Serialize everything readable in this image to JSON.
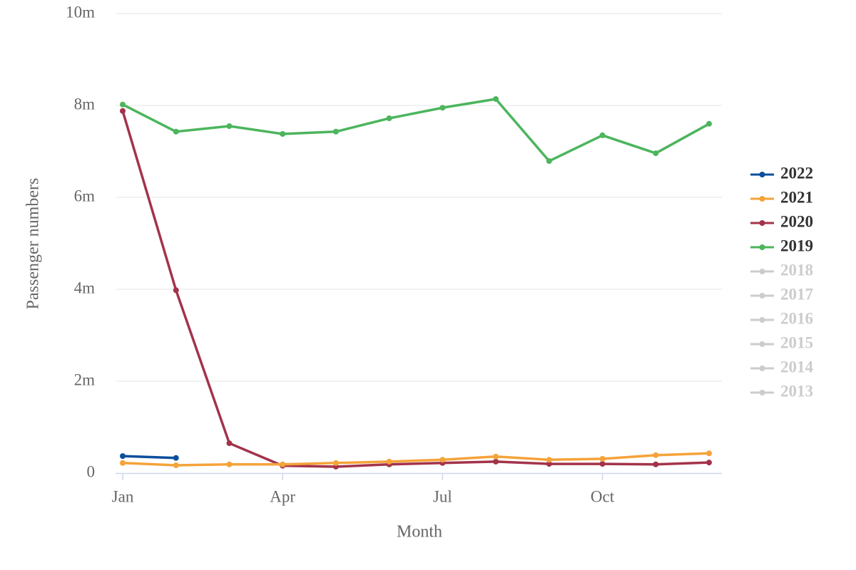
{
  "chart_data": {
    "type": "line",
    "x_label": "Month",
    "y_label": "Passenger numbers",
    "categories": [
      "Jan",
      null,
      null,
      "Apr",
      null,
      null,
      "Jul",
      null,
      null,
      "Oct",
      null,
      null
    ],
    "ylim": [
      0,
      10000000
    ],
    "yticks": [
      0,
      {
        "value": 2000000,
        "label": "2m"
      },
      {
        "value": 4000000,
        "label": "4m"
      },
      {
        "value": 6000000,
        "label": "6m"
      },
      {
        "value": 8000000,
        "label": "8m"
      },
      {
        "value": 10000000,
        "label": "10m"
      }
    ],
    "grid": true,
    "legend": "right",
    "series": [
      {
        "name": "2022",
        "color": "#0b4f9c",
        "values": [
          370000,
          330000,
          null,
          null,
          null,
          null,
          null,
          null,
          null,
          null,
          null,
          null
        ]
      },
      {
        "name": "2021",
        "color": "#f5a33a",
        "values": [
          220000,
          170000,
          190000,
          190000,
          220000,
          250000,
          290000,
          360000,
          290000,
          310000,
          390000,
          430000
        ]
      },
      {
        "name": "2020",
        "color": "#a3334a",
        "values": [
          7880000,
          3980000,
          650000,
          160000,
          140000,
          190000,
          220000,
          250000,
          200000,
          200000,
          190000,
          230000
        ]
      },
      {
        "name": "2019",
        "color": "#4cb55d",
        "values": [
          8020000,
          7430000,
          7550000,
          7380000,
          7430000,
          7720000,
          7950000,
          8140000,
          6790000,
          7350000,
          6960000,
          7600000
        ]
      },
      {
        "name": "2018",
        "hidden": true
      },
      {
        "name": "2017",
        "hidden": true
      },
      {
        "name": "2016",
        "hidden": true
      },
      {
        "name": "2015",
        "hidden": true
      },
      {
        "name": "2014",
        "hidden": true
      },
      {
        "name": "2013",
        "hidden": true
      }
    ]
  }
}
